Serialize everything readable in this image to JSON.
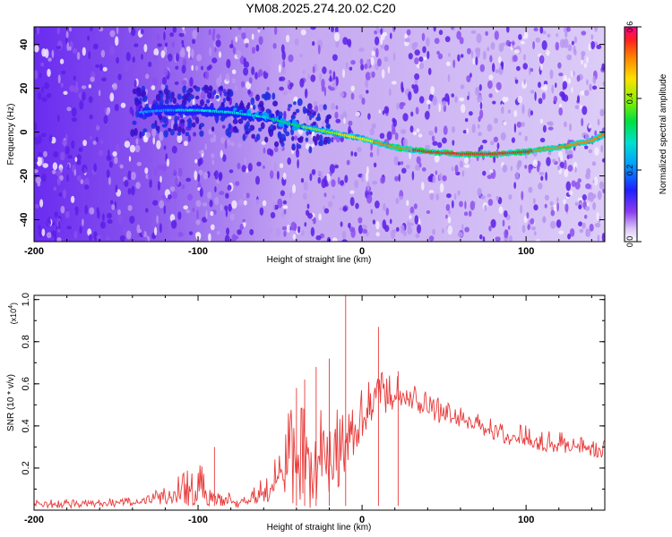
{
  "title": "YM08.2025.274.20.02.C20",
  "chart_data": [
    {
      "type": "heatmap",
      "title": "YM08.2025.274.20.02.C20",
      "xlabel": "Height of straight line (km)",
      "ylabel": "Frequency (Hz)",
      "xlim": [
        -200,
        148
      ],
      "ylim": [
        -50,
        48
      ],
      "x_ticks": [
        -200,
        -100,
        0,
        100
      ],
      "x_tick_labels": [
        "-200",
        "-100",
        "0",
        "100"
      ],
      "y_ticks": [
        -40,
        -20,
        0,
        20,
        40
      ],
      "y_tick_labels": [
        "-40",
        "-20",
        "0",
        "20",
        "40"
      ],
      "colorbar": {
        "label": "Normalized spectral amplitude",
        "range": [
          0.0,
          0.6
        ],
        "ticks": [
          0.0,
          0.2,
          0.4,
          0.6
        ],
        "tick_labels": [
          "0.0",
          "0.2",
          "0.4",
          "0.6"
        ]
      },
      "trace": {
        "description": "high-amplitude frequency trace",
        "x": [
          -135,
          -120,
          -100,
          -80,
          -60,
          -40,
          -20,
          0,
          20,
          40,
          60,
          80,
          100,
          120,
          140,
          148
        ],
        "y": [
          9,
          10,
          10,
          9,
          7,
          3,
          0,
          -3,
          -7,
          -9,
          -10,
          -10,
          -9,
          -7,
          -4,
          -1
        ],
        "amplitude": [
          0.2,
          0.22,
          0.24,
          0.25,
          0.28,
          0.34,
          0.4,
          0.46,
          0.52,
          0.56,
          0.58,
          0.58,
          0.55,
          0.52,
          0.5,
          0.48
        ]
      }
    },
    {
      "type": "line",
      "xlabel": "Height of straight line (km)",
      "ylabel": "SNR (10 * v/v)",
      "y_multiplier": "(x10",
      "y_multiplier_exp": "4",
      "xlim": [
        -200,
        148
      ],
      "ylim": [
        0,
        1.02
      ],
      "x_ticks": [
        -200,
        -100,
        0,
        100
      ],
      "x_tick_labels": [
        "-200",
        "-100",
        "0",
        "100"
      ],
      "y_ticks": [
        0.2,
        0.4,
        0.6,
        0.8,
        1.0
      ],
      "y_tick_labels": [
        "0.2",
        "0.4",
        "0.6",
        "0.8",
        "1.0"
      ],
      "series": [
        {
          "name": "SNR",
          "color": "#e83a3a",
          "x": [
            -200,
            -180,
            -160,
            -140,
            -130,
            -120,
            -115,
            -110,
            -105,
            -100,
            -95,
            -90,
            -85,
            -80,
            -75,
            -70,
            -65,
            -60,
            -55,
            -50,
            -45,
            -40,
            -35,
            -30,
            -25,
            -20,
            -15,
            -10,
            -5,
            0,
            5,
            10,
            15,
            20,
            25,
            30,
            35,
            40,
            45,
            50,
            60,
            70,
            80,
            90,
            100,
            110,
            120,
            130,
            140,
            148
          ],
          "y": [
            0.03,
            0.03,
            0.035,
            0.04,
            0.05,
            0.08,
            0.1,
            0.11,
            0.12,
            0.12,
            0.11,
            0.09,
            0.07,
            0.05,
            0.04,
            0.05,
            0.07,
            0.1,
            0.14,
            0.18,
            0.24,
            0.28,
            0.3,
            0.3,
            0.26,
            0.22,
            0.28,
            0.36,
            0.4,
            0.46,
            0.52,
            0.56,
            0.55,
            0.55,
            0.56,
            0.54,
            0.52,
            0.5,
            0.48,
            0.46,
            0.44,
            0.42,
            0.38,
            0.36,
            0.35,
            0.33,
            0.32,
            0.31,
            0.3,
            0.28
          ],
          "noise": [
            0.02,
            0.02,
            0.02,
            0.025,
            0.03,
            0.05,
            0.07,
            0.09,
            0.1,
            0.1,
            0.09,
            0.07,
            0.05,
            0.03,
            0.03,
            0.03,
            0.05,
            0.08,
            0.12,
            0.16,
            0.22,
            0.24,
            0.3,
            0.3,
            0.28,
            0.26,
            0.22,
            0.16,
            0.14,
            0.12,
            0.1,
            0.1,
            0.09,
            0.08,
            0.08,
            0.07,
            0.07,
            0.06,
            0.06,
            0.06,
            0.05,
            0.05,
            0.05,
            0.05,
            0.05,
            0.05,
            0.05,
            0.05,
            0.05,
            0.05
          ]
        }
      ],
      "peaks": [
        {
          "x": -90,
          "y": 0.3
        },
        {
          "x": -40,
          "y": 0.58
        },
        {
          "x": -35,
          "y": 0.62
        },
        {
          "x": -28,
          "y": 0.68
        },
        {
          "x": -20,
          "y": 0.72
        },
        {
          "x": -10,
          "y": 1.02
        },
        {
          "x": 10,
          "y": 0.87
        },
        {
          "x": 22,
          "y": 0.66
        }
      ]
    }
  ]
}
